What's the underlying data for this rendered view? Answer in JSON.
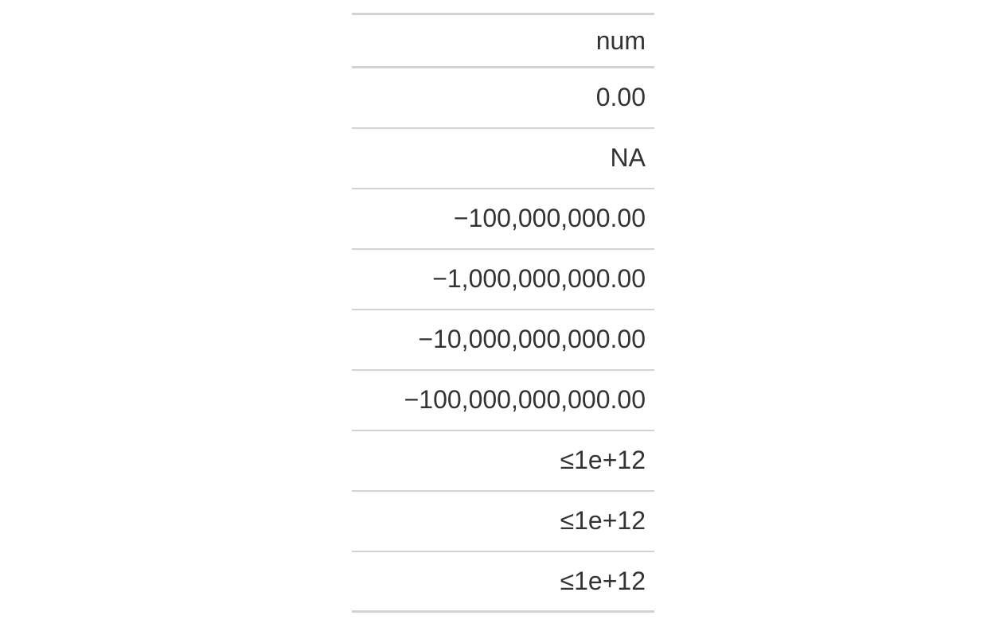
{
  "table": {
    "header": "num",
    "rows": [
      "0.00",
      "NA",
      "−100,000,000.00",
      "−1,000,000,000.00",
      "−10,000,000,000.00",
      "−100,000,000,000.00",
      "≤1e+12",
      "≤1e+12",
      "≤1e+12"
    ]
  }
}
